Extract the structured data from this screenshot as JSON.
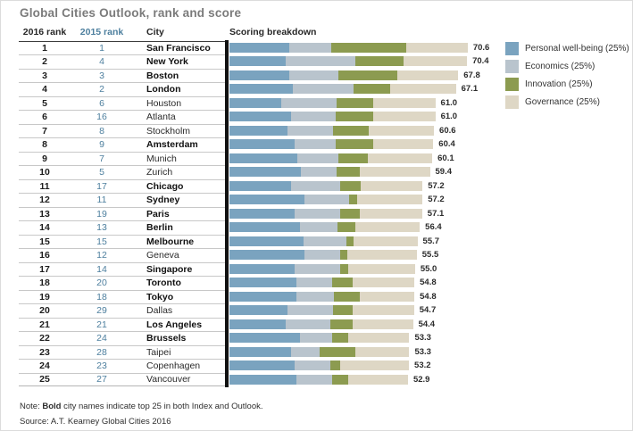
{
  "title": "Global Cities Outlook, rank and score",
  "columns": {
    "rank_2016": "2016 rank",
    "rank_2015": "2015 rank",
    "city": "City",
    "scoring": "Scoring breakdown"
  },
  "legend": [
    {
      "label": "Personal well-being (25%)",
      "color": "#7aa3bf"
    },
    {
      "label": "Economics (25%)",
      "color": "#b9c4cd"
    },
    {
      "label": "Innovation (25%)",
      "color": "#8c9b50"
    },
    {
      "label": "Governance (25%)",
      "color": "#ded7c5"
    }
  ],
  "note": {
    "prefix": "Note: ",
    "bold": "Bold",
    "rest": " city names indicate top 25 in both Index and Outlook."
  },
  "source": "Source: A.T. Kearney Global Cities 2016",
  "colors": {
    "personal_well_being": "#7aa3bf",
    "economics": "#b9c4cd",
    "innovation": "#8c9b50",
    "governance": "#ded7c5",
    "rank_2015_text": "#4d7f9e",
    "axis": "#111111",
    "title_text": "#7b7b7b"
  },
  "chart_data": {
    "type": "bar",
    "orientation": "horizontal",
    "stacked": true,
    "title": "Global Cities Outlook, rank and score",
    "series_labels": [
      "Personal well-being (25%)",
      "Economics (25%)",
      "Innovation (25%)",
      "Governance (25%)"
    ],
    "series_colors": [
      "#7aa3bf",
      "#b9c4cd",
      "#8c9b50",
      "#ded7c5"
    ],
    "value_note": "segments are weighted contribution points; segments sum to total score",
    "xlim": [
      0,
      75
    ],
    "rows": [
      {
        "rank_2016": "1",
        "rank_2015": "1",
        "city": "San Francisco",
        "bold": true,
        "segments": [
          17.6,
          12.6,
          22.2,
          18.2
        ],
        "score": "70.6"
      },
      {
        "rank_2016": "2",
        "rank_2015": "4",
        "city": "New York",
        "bold": true,
        "segments": [
          16.7,
          20.7,
          14.2,
          18.8
        ],
        "score": "70.4"
      },
      {
        "rank_2016": "3",
        "rank_2015": "3",
        "city": "Boston",
        "bold": true,
        "segments": [
          17.6,
          14.8,
          17.3,
          18.1
        ],
        "score": "67.8"
      },
      {
        "rank_2016": "4",
        "rank_2015": "2",
        "city": "London",
        "bold": true,
        "segments": [
          18.9,
          17.9,
          10.9,
          19.4
        ],
        "score": "67.1"
      },
      {
        "rank_2016": "5",
        "rank_2015": "6",
        "city": "Houston",
        "bold": false,
        "segments": [
          15.4,
          16.3,
          10.9,
          18.4
        ],
        "score": "61.0"
      },
      {
        "rank_2016": "6",
        "rank_2015": "16",
        "city": "Atlanta",
        "bold": false,
        "segments": [
          18.3,
          13.1,
          11.2,
          18.4
        ],
        "score": "61.0"
      },
      {
        "rank_2016": "7",
        "rank_2015": "8",
        "city": "Stockholm",
        "bold": false,
        "segments": [
          17.2,
          13.5,
          10.7,
          19.2
        ],
        "score": "60.6"
      },
      {
        "rank_2016": "8",
        "rank_2015": "9",
        "city": "Amsterdam",
        "bold": true,
        "segments": [
          19.2,
          12.2,
          11.1,
          17.9
        ],
        "score": "60.4"
      },
      {
        "rank_2016": "9",
        "rank_2015": "7",
        "city": "Munich",
        "bold": false,
        "segments": [
          20.2,
          12.2,
          8.5,
          19.2
        ],
        "score": "60.1"
      },
      {
        "rank_2016": "10",
        "rank_2015": "5",
        "city": "Zurich",
        "bold": false,
        "segments": [
          21.1,
          10.7,
          6.9,
          20.7
        ],
        "score": "59.4"
      },
      {
        "rank_2016": "11",
        "rank_2015": "17",
        "city": "Chicago",
        "bold": true,
        "segments": [
          18.3,
          14.4,
          6.3,
          18.2
        ],
        "score": "57.2"
      },
      {
        "rank_2016": "12",
        "rank_2015": "11",
        "city": "Sydney",
        "bold": true,
        "segments": [
          22.2,
          13.3,
          2.4,
          19.3
        ],
        "score": "57.2"
      },
      {
        "rank_2016": "13",
        "rank_2015": "19",
        "city": "Paris",
        "bold": true,
        "segments": [
          19.4,
          13.5,
          5.7,
          18.5
        ],
        "score": "57.1"
      },
      {
        "rank_2016": "14",
        "rank_2015": "13",
        "city": "Berlin",
        "bold": true,
        "segments": [
          20.9,
          11.1,
          5.2,
          19.2
        ],
        "score": "56.4"
      },
      {
        "rank_2016": "15",
        "rank_2015": "15",
        "city": "Melbourne",
        "bold": true,
        "segments": [
          22.0,
          12.6,
          2.2,
          18.9
        ],
        "score": "55.7"
      },
      {
        "rank_2016": "16",
        "rank_2015": "12",
        "city": "Geneva",
        "bold": false,
        "segments": [
          22.2,
          10.6,
          2.2,
          20.5
        ],
        "score": "55.5"
      },
      {
        "rank_2016": "17",
        "rank_2015": "14",
        "city": "Singapore",
        "bold": true,
        "segments": [
          19.2,
          13.5,
          2.6,
          19.7
        ],
        "score": "55.0"
      },
      {
        "rank_2016": "18",
        "rank_2015": "20",
        "city": "Toronto",
        "bold": true,
        "segments": [
          19.8,
          10.5,
          6.1,
          18.4
        ],
        "score": "54.8"
      },
      {
        "rank_2016": "19",
        "rank_2015": "18",
        "city": "Tokyo",
        "bold": true,
        "segments": [
          19.8,
          11.2,
          7.6,
          16.2
        ],
        "score": "54.8"
      },
      {
        "rank_2016": "20",
        "rank_2015": "29",
        "city": "Dallas",
        "bold": false,
        "segments": [
          17.2,
          13.5,
          5.9,
          18.1
        ],
        "score": "54.7"
      },
      {
        "rank_2016": "21",
        "rank_2015": "21",
        "city": "Los Angeles",
        "bold": true,
        "segments": [
          16.6,
          13.4,
          6.6,
          17.8
        ],
        "score": "54.4"
      },
      {
        "rank_2016": "22",
        "rank_2015": "24",
        "city": "Brussels",
        "bold": true,
        "segments": [
          20.9,
          9.6,
          4.8,
          18.0
        ],
        "score": "53.3"
      },
      {
        "rank_2016": "23",
        "rank_2015": "28",
        "city": "Taipei",
        "bold": false,
        "segments": [
          18.3,
          8.5,
          10.6,
          15.9
        ],
        "score": "53.3"
      },
      {
        "rank_2016": "24",
        "rank_2015": "23",
        "city": "Copenhagen",
        "bold": false,
        "segments": [
          19.2,
          10.6,
          3.1,
          20.3
        ],
        "score": "53.2"
      },
      {
        "rank_2016": "25",
        "rank_2015": "27",
        "city": "Vancouver",
        "bold": false,
        "segments": [
          19.8,
          10.7,
          4.8,
          17.6
        ],
        "score": "52.9"
      }
    ]
  }
}
